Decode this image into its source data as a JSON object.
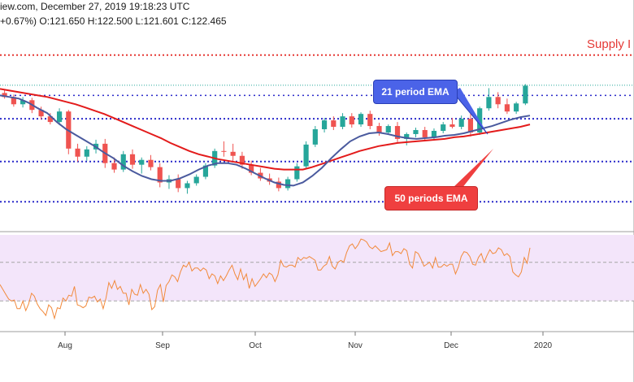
{
  "header": {
    "line1": "iew.com, December 27, 2019 19:18:23 UTC",
    "line2": "+0.67%) O:121.650 H:122.500 L:121.601 C:122.465"
  },
  "annotations": {
    "supply": "Supply I",
    "ema21": "21 period EMA",
    "ema50": "50 periods EMA"
  },
  "colors": {
    "up": "#26a69a",
    "down": "#ef5350",
    "ema21": "#4a5a9e",
    "ema50": "#e31b1b",
    "support": "#2a2aca",
    "resistance": "#e53935",
    "rsi_line": "#f28a3c",
    "rsi_band": "#f3e5fa"
  },
  "chart_data": [
    {
      "type": "candlestick",
      "title": "",
      "x_labels": [
        "Aug",
        "Sep",
        "Oct",
        "Nov",
        "Dec",
        "2020"
      ],
      "ylim": [
        104.5,
        129
      ],
      "horizontal_levels": [
        {
          "kind": "resistance",
          "price": 126.2
        },
        {
          "kind": "support",
          "price": 121.2
        },
        {
          "kind": "support",
          "price": 118.3
        },
        {
          "kind": "support",
          "price": 113.0
        },
        {
          "kind": "support",
          "price": 108.0
        },
        {
          "kind": "last-price",
          "price": 122.465
        }
      ],
      "series": [
        {
          "name": "21 period EMA",
          "values": [
            121.2,
            121.0,
            120.8,
            120.3,
            119.6,
            119.0,
            117.9,
            117.0,
            116.3,
            115.6,
            114.9,
            114.1,
            113.4,
            112.5,
            111.8,
            111.2,
            110.8,
            110.6,
            110.6,
            110.9,
            111.4,
            112.0,
            112.5,
            112.8,
            112.8,
            112.6,
            112.1,
            111.5,
            110.9,
            110.4,
            110.1,
            110.0,
            110.4,
            111.2,
            112.2,
            113.4,
            114.5,
            115.5,
            116.1,
            116.5,
            116.6,
            116.4,
            116.1,
            115.9,
            115.8,
            115.9,
            116.0,
            116.2,
            116.3,
            116.5,
            116.8,
            117.1,
            117.4,
            117.8,
            118.2,
            118.5,
            118.7
          ]
        },
        {
          "name": "50 periods EMA",
          "values": [
            122.0,
            121.8,
            121.6,
            121.4,
            121.2,
            121.0,
            120.7,
            120.4,
            120.1,
            119.7,
            119.3,
            118.9,
            118.4,
            117.9,
            117.4,
            116.9,
            116.4,
            115.9,
            115.3,
            114.8,
            114.3,
            113.9,
            113.6,
            113.3,
            113.1,
            112.9,
            112.7,
            112.5,
            112.3,
            112.1,
            112.0,
            112.0,
            112.0,
            112.3,
            112.7,
            113.1,
            113.5,
            113.9,
            114.3,
            114.6,
            114.9,
            115.1,
            115.3,
            115.4,
            115.5,
            115.6,
            115.7,
            115.8,
            116.0,
            116.1,
            116.3,
            116.5,
            116.7,
            116.9,
            117.1,
            117.3,
            117.6
          ]
        }
      ],
      "candles": [
        [
          121.5,
          121.9,
          120.8,
          121.0
        ],
        [
          121.0,
          121.3,
          119.8,
          120.1
        ],
        [
          120.1,
          121.0,
          119.7,
          120.6
        ],
        [
          120.6,
          120.9,
          119.0,
          119.4
        ],
        [
          119.4,
          119.8,
          118.2,
          118.6
        ],
        [
          118.6,
          119.0,
          117.6,
          117.9
        ],
        [
          117.9,
          119.6,
          117.5,
          119.2
        ],
        [
          119.2,
          119.4,
          113.9,
          114.6
        ],
        [
          114.6,
          115.2,
          113.0,
          113.6
        ],
        [
          113.6,
          114.9,
          113.1,
          114.5
        ],
        [
          114.5,
          115.7,
          114.0,
          115.2
        ],
        [
          115.2,
          115.8,
          112.2,
          112.8
        ],
        [
          112.8,
          113.5,
          111.6,
          112.0
        ],
        [
          112.0,
          114.3,
          111.7,
          113.9
        ],
        [
          113.9,
          114.5,
          112.1,
          112.6
        ],
        [
          112.6,
          113.5,
          111.5,
          113.2
        ],
        [
          113.2,
          113.8,
          111.9,
          112.3
        ],
        [
          112.3,
          112.8,
          109.8,
          110.4
        ],
        [
          110.4,
          111.3,
          109.6,
          110.8
        ],
        [
          110.8,
          111.4,
          109.2,
          109.7
        ],
        [
          109.7,
          110.6,
          109.0,
          110.3
        ],
        [
          110.3,
          111.4,
          110.0,
          111.1
        ],
        [
          111.1,
          112.8,
          110.8,
          112.5
        ],
        [
          112.5,
          114.6,
          112.2,
          114.3
        ],
        [
          114.3,
          115.5,
          113.6,
          114.2
        ],
        [
          114.2,
          115.2,
          113.1,
          113.7
        ],
        [
          113.7,
          114.2,
          112.1,
          112.6
        ],
        [
          112.6,
          113.1,
          111.3,
          111.6
        ],
        [
          111.6,
          112.2,
          110.6,
          110.9
        ],
        [
          110.9,
          111.5,
          110.1,
          110.5
        ],
        [
          110.5,
          111.0,
          109.3,
          109.7
        ],
        [
          109.7,
          111.1,
          109.4,
          110.8
        ],
        [
          110.8,
          112.8,
          110.5,
          112.4
        ],
        [
          112.4,
          115.5,
          112.1,
          115.1
        ],
        [
          115.1,
          117.4,
          114.8,
          117.0
        ],
        [
          117.0,
          118.4,
          116.6,
          118.1
        ],
        [
          118.1,
          118.6,
          116.9,
          117.3
        ],
        [
          117.3,
          119.0,
          117.0,
          118.6
        ],
        [
          118.6,
          119.0,
          117.2,
          117.6
        ],
        [
          117.6,
          119.1,
          117.3,
          118.9
        ],
        [
          118.9,
          119.3,
          117.0,
          117.4
        ],
        [
          117.4,
          117.8,
          116.2,
          116.6
        ],
        [
          116.6,
          117.6,
          116.3,
          117.4
        ],
        [
          117.4,
          117.9,
          115.4,
          115.8
        ],
        [
          115.8,
          116.6,
          115.0,
          116.4
        ],
        [
          116.4,
          117.2,
          116.0,
          116.9
        ],
        [
          116.9,
          117.3,
          115.6,
          116.0
        ],
        [
          116.0,
          117.1,
          115.7,
          116.8
        ],
        [
          116.8,
          117.9,
          116.5,
          117.6
        ],
        [
          117.6,
          118.4,
          117.1,
          117.3
        ],
        [
          117.3,
          118.7,
          117.0,
          118.3
        ],
        [
          118.3,
          118.9,
          116.1,
          116.6
        ],
        [
          116.6,
          119.8,
          116.3,
          119.6
        ],
        [
          119.6,
          122.1,
          119.3,
          121.0
        ],
        [
          121.0,
          121.6,
          119.6,
          120.1
        ],
        [
          120.1,
          120.8,
          118.9,
          119.2
        ],
        [
          119.2,
          120.4,
          118.9,
          120.2
        ],
        [
          120.2,
          122.6,
          120.0,
          122.4
        ]
      ]
    },
    {
      "type": "line",
      "title": "",
      "ylim": [
        0,
        100
      ],
      "bands": [
        30,
        70
      ],
      "series": [
        {
          "name": "",
          "values": [
            47,
            42,
            37,
            32,
            30,
            31,
            22,
            22,
            30,
            20,
            27,
            38,
            35,
            27,
            22,
            19,
            15,
            26,
            23,
            12,
            23,
            22,
            33,
            30,
            36,
            35,
            45,
            26,
            25,
            23,
            25,
            34,
            33,
            35,
            29,
            32,
            22,
            33,
            49,
            43,
            51,
            42,
            45,
            38,
            38,
            26,
            42,
            37,
            36,
            47,
            38,
            42,
            37,
            21,
            24,
            41,
            47,
            29,
            46,
            50,
            57,
            55,
            50,
            60,
            67,
            65,
            70,
            61,
            64,
            64,
            61,
            64,
            62,
            53,
            58,
            56,
            48,
            56,
            51,
            56,
            62,
            67,
            58,
            52,
            63,
            52,
            58,
            43,
            53,
            45,
            49,
            53,
            58,
            54,
            59,
            57,
            50,
            57,
            72,
            66,
            65,
            67,
            67,
            65,
            75,
            72,
            75,
            74,
            76,
            74,
            72,
            62,
            62,
            66,
            68,
            76,
            66,
            63,
            70,
            72,
            70,
            80,
            87,
            89,
            84,
            88,
            94,
            93,
            91,
            86,
            84,
            87,
            84,
            81,
            82,
            83,
            90,
            77,
            81,
            81,
            79,
            84,
            82,
            68,
            64,
            81,
            79,
            73,
            66,
            68,
            70,
            64,
            75,
            65,
            65,
            68,
            66,
            68,
            68,
            58,
            65,
            76,
            81,
            80,
            76,
            68,
            67,
            75,
            79,
            70,
            77,
            83,
            79,
            80,
            85,
            83,
            77,
            79,
            76,
            60,
            57,
            55,
            60,
            75,
            69,
            85
          ]
        }
      ]
    }
  ]
}
